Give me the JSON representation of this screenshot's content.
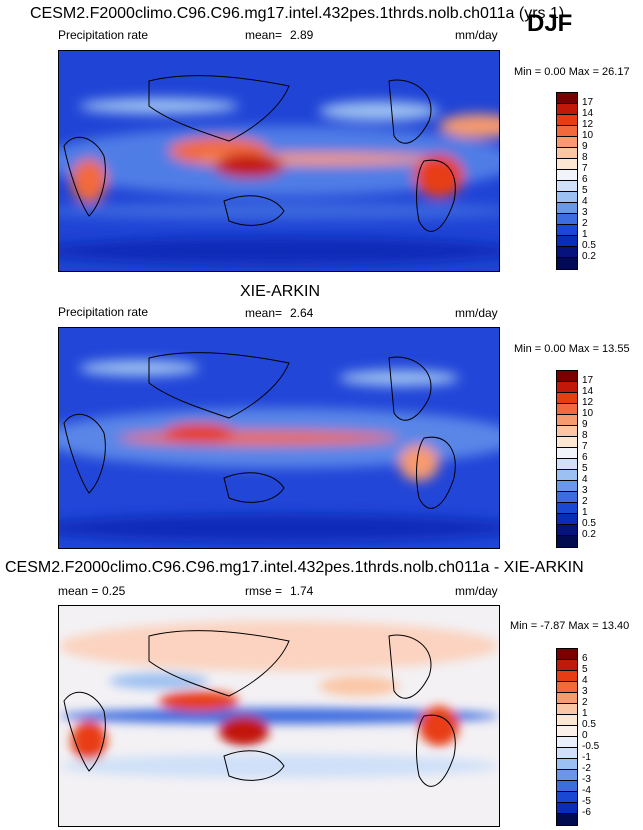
{
  "season": "DJF",
  "panels": [
    {
      "title": "CESM2.F2000climo.C96.C96.mg17.intel.432pes.1thrds.nolb.ch011a (yrs 1)",
      "variable": "Precipitation rate",
      "stat1_label": "mean=",
      "stat1_value": "2.89",
      "stat2_label": "",
      "stat2_value": "",
      "units": "mm/day",
      "minmax": "Min =   0.00 Max =  26.17",
      "colorbar_labels": [
        "17",
        "14",
        "12",
        "10",
        "9",
        "8",
        "7",
        "6",
        "5",
        "4",
        "3",
        "2",
        "1",
        "0.5",
        "0.2"
      ],
      "colorbar_colors": [
        "#7a0000",
        "#c2180a",
        "#e83c14",
        "#f26a3c",
        "#f79a70",
        "#fbc6a6",
        "#fde6d2",
        "#f2f4fb",
        "#cfe0f8",
        "#9cc0f1",
        "#6a98e8",
        "#3c6cdf",
        "#1a48d4",
        "#0a2cb8",
        "#06137e",
        "#020a50"
      ]
    },
    {
      "title": "XIE-ARKIN",
      "variable": "Precipitation rate",
      "stat1_label": "mean=",
      "stat1_value": "2.64",
      "stat2_label": "",
      "stat2_value": "",
      "units": "mm/day",
      "minmax": "Min =   0.00 Max =  13.55",
      "colorbar_labels": [
        "17",
        "14",
        "12",
        "10",
        "9",
        "8",
        "7",
        "6",
        "5",
        "4",
        "3",
        "2",
        "1",
        "0.5",
        "0.2"
      ],
      "colorbar_colors": [
        "#7a0000",
        "#c2180a",
        "#e83c14",
        "#f26a3c",
        "#f79a70",
        "#fbc6a6",
        "#fde6d2",
        "#f2f4fb",
        "#cfe0f8",
        "#9cc0f1",
        "#6a98e8",
        "#3c6cdf",
        "#1a48d4",
        "#0a2cb8",
        "#06137e",
        "#020a50"
      ]
    },
    {
      "title": "CESM2.F2000climo.C96.C96.mg17.intel.432pes.1thrds.nolb.ch011a - XIE-ARKIN",
      "variable": "",
      "stat1_label": "mean =",
      "stat1_value": "0.25",
      "stat2_label": "rmse =",
      "stat2_value": "1.74",
      "units": "mm/day",
      "minmax": "Min =  -7.87 Max =  13.40",
      "colorbar_labels": [
        "6",
        "5",
        "4",
        "3",
        "2",
        "1",
        "0.5",
        "0",
        "-0.5",
        "-1",
        "-2",
        "-3",
        "-4",
        "-5",
        "-6"
      ],
      "colorbar_colors": [
        "#7a0000",
        "#c2180a",
        "#e83c14",
        "#f26a3c",
        "#f79a70",
        "#fbc6a6",
        "#fde6d2",
        "#fbf1ea",
        "#eaf0fb",
        "#cfe0f8",
        "#9cc0f1",
        "#6a98e8",
        "#3c6cdf",
        "#1a48d4",
        "#0a2cb8",
        "#020a50"
      ]
    }
  ]
}
